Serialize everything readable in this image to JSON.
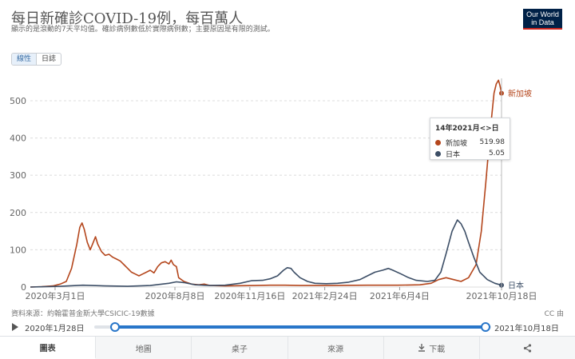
{
  "header": {
    "title": "每日新確診COVID-19例，每百萬人",
    "subtitle": "顯示的是滾動的7天平均值。確診病例數低於實際病例數；主要原因是有限的測試。",
    "logo": "Our World in Data"
  },
  "scale_toggle": {
    "linear": "線性",
    "log": "日誌"
  },
  "tooltip": {
    "title": "14年2021月<>日",
    "rows": [
      {
        "name": "新加坡",
        "value": "519.98",
        "color": "#b4461c"
      },
      {
        "name": "日本",
        "value": "5.05",
        "color": "#3c4e66"
      }
    ]
  },
  "source": "資料來源：約翰霍普金斯大學CSICIC-19數據",
  "license": "CC 由",
  "timeline": {
    "start": "2020年1月28日",
    "end": "2021年10月18日"
  },
  "tabs": [
    {
      "label": "圖表",
      "active": true,
      "icon": ""
    },
    {
      "label": "地圖",
      "active": false,
      "icon": ""
    },
    {
      "label": "桌子",
      "active": false,
      "icon": ""
    },
    {
      "label": "來源",
      "active": false,
      "icon": ""
    },
    {
      "label": "下載",
      "active": false,
      "icon": "download-icon"
    },
    {
      "label": "",
      "active": false,
      "icon": "share-icon"
    }
  ],
  "chart_data": {
    "type": "line",
    "title": "每日新確診COVID-19例，每百萬人",
    "xlabel": "",
    "ylabel": "",
    "ylim": [
      0,
      560
    ],
    "y_ticks": [
      0,
      100,
      200,
      300,
      400,
      500
    ],
    "x_ticks": [
      "2020年3月1日",
      "2020年8月8日",
      "2020年11月16日",
      "2021年2月24日",
      "2021年6月4日",
      "2021年10月18日"
    ],
    "x_tick_days": [
      33,
      193,
      293,
      393,
      493,
      629
    ],
    "x_range_days": [
      0,
      629
    ],
    "grid": true,
    "series": [
      {
        "name": "新加坡",
        "color": "#b4461c",
        "points": [
          [
            0,
            0
          ],
          [
            15,
            1
          ],
          [
            30,
            3
          ],
          [
            40,
            8
          ],
          [
            48,
            15
          ],
          [
            55,
            50
          ],
          [
            62,
            115
          ],
          [
            66,
            160
          ],
          [
            69,
            172
          ],
          [
            72,
            155
          ],
          [
            76,
            120
          ],
          [
            80,
            100
          ],
          [
            84,
            120
          ],
          [
            87,
            135
          ],
          [
            90,
            115
          ],
          [
            95,
            95
          ],
          [
            100,
            85
          ],
          [
            105,
            88
          ],
          [
            110,
            80
          ],
          [
            115,
            75
          ],
          [
            120,
            70
          ],
          [
            125,
            60
          ],
          [
            130,
            50
          ],
          [
            135,
            40
          ],
          [
            140,
            35
          ],
          [
            145,
            30
          ],
          [
            150,
            35
          ],
          [
            155,
            40
          ],
          [
            160,
            45
          ],
          [
            165,
            38
          ],
          [
            170,
            55
          ],
          [
            175,
            65
          ],
          [
            180,
            68
          ],
          [
            185,
            62
          ],
          [
            188,
            72
          ],
          [
            191,
            60
          ],
          [
            195,
            55
          ],
          [
            198,
            25
          ],
          [
            205,
            15
          ],
          [
            215,
            8
          ],
          [
            225,
            6
          ],
          [
            232,
            8
          ],
          [
            240,
            4
          ],
          [
            260,
            3
          ],
          [
            300,
            4
          ],
          [
            320,
            5
          ],
          [
            340,
            5
          ],
          [
            360,
            4
          ],
          [
            400,
            4
          ],
          [
            450,
            5
          ],
          [
            490,
            5
          ],
          [
            520,
            6
          ],
          [
            535,
            10
          ],
          [
            545,
            20
          ],
          [
            555,
            25
          ],
          [
            565,
            20
          ],
          [
            575,
            15
          ],
          [
            585,
            25
          ],
          [
            595,
            60
          ],
          [
            602,
            150
          ],
          [
            608,
            280
          ],
          [
            614,
            420
          ],
          [
            619,
            520
          ],
          [
            622,
            545
          ],
          [
            625,
            555
          ],
          [
            627,
            540
          ],
          [
            629,
            520
          ]
        ]
      },
      {
        "name": "日本",
        "color": "#3c4e66",
        "points": [
          [
            0,
            0
          ],
          [
            40,
            2
          ],
          [
            70,
            5
          ],
          [
            100,
            3
          ],
          [
            130,
            2
          ],
          [
            160,
            4
          ],
          [
            185,
            10
          ],
          [
            195,
            14
          ],
          [
            205,
            12
          ],
          [
            220,
            6
          ],
          [
            240,
            4
          ],
          [
            260,
            5
          ],
          [
            280,
            10
          ],
          [
            295,
            17
          ],
          [
            310,
            18
          ],
          [
            320,
            22
          ],
          [
            330,
            30
          ],
          [
            338,
            45
          ],
          [
            343,
            52
          ],
          [
            348,
            50
          ],
          [
            352,
            40
          ],
          [
            360,
            25
          ],
          [
            370,
            15
          ],
          [
            380,
            10
          ],
          [
            395,
            9
          ],
          [
            410,
            10
          ],
          [
            425,
            13
          ],
          [
            440,
            20
          ],
          [
            450,
            30
          ],
          [
            460,
            40
          ],
          [
            470,
            45
          ],
          [
            478,
            50
          ],
          [
            484,
            45
          ],
          [
            495,
            35
          ],
          [
            505,
            25
          ],
          [
            515,
            18
          ],
          [
            530,
            15
          ],
          [
            540,
            18
          ],
          [
            548,
            40
          ],
          [
            555,
            90
          ],
          [
            563,
            150
          ],
          [
            570,
            180
          ],
          [
            575,
            170
          ],
          [
            580,
            150
          ],
          [
            585,
            120
          ],
          [
            592,
            80
          ],
          [
            600,
            40
          ],
          [
            610,
            20
          ],
          [
            620,
            10
          ],
          [
            629,
            5
          ]
        ]
      }
    ],
    "end_labels": [
      "新加坡",
      "日本"
    ]
  }
}
